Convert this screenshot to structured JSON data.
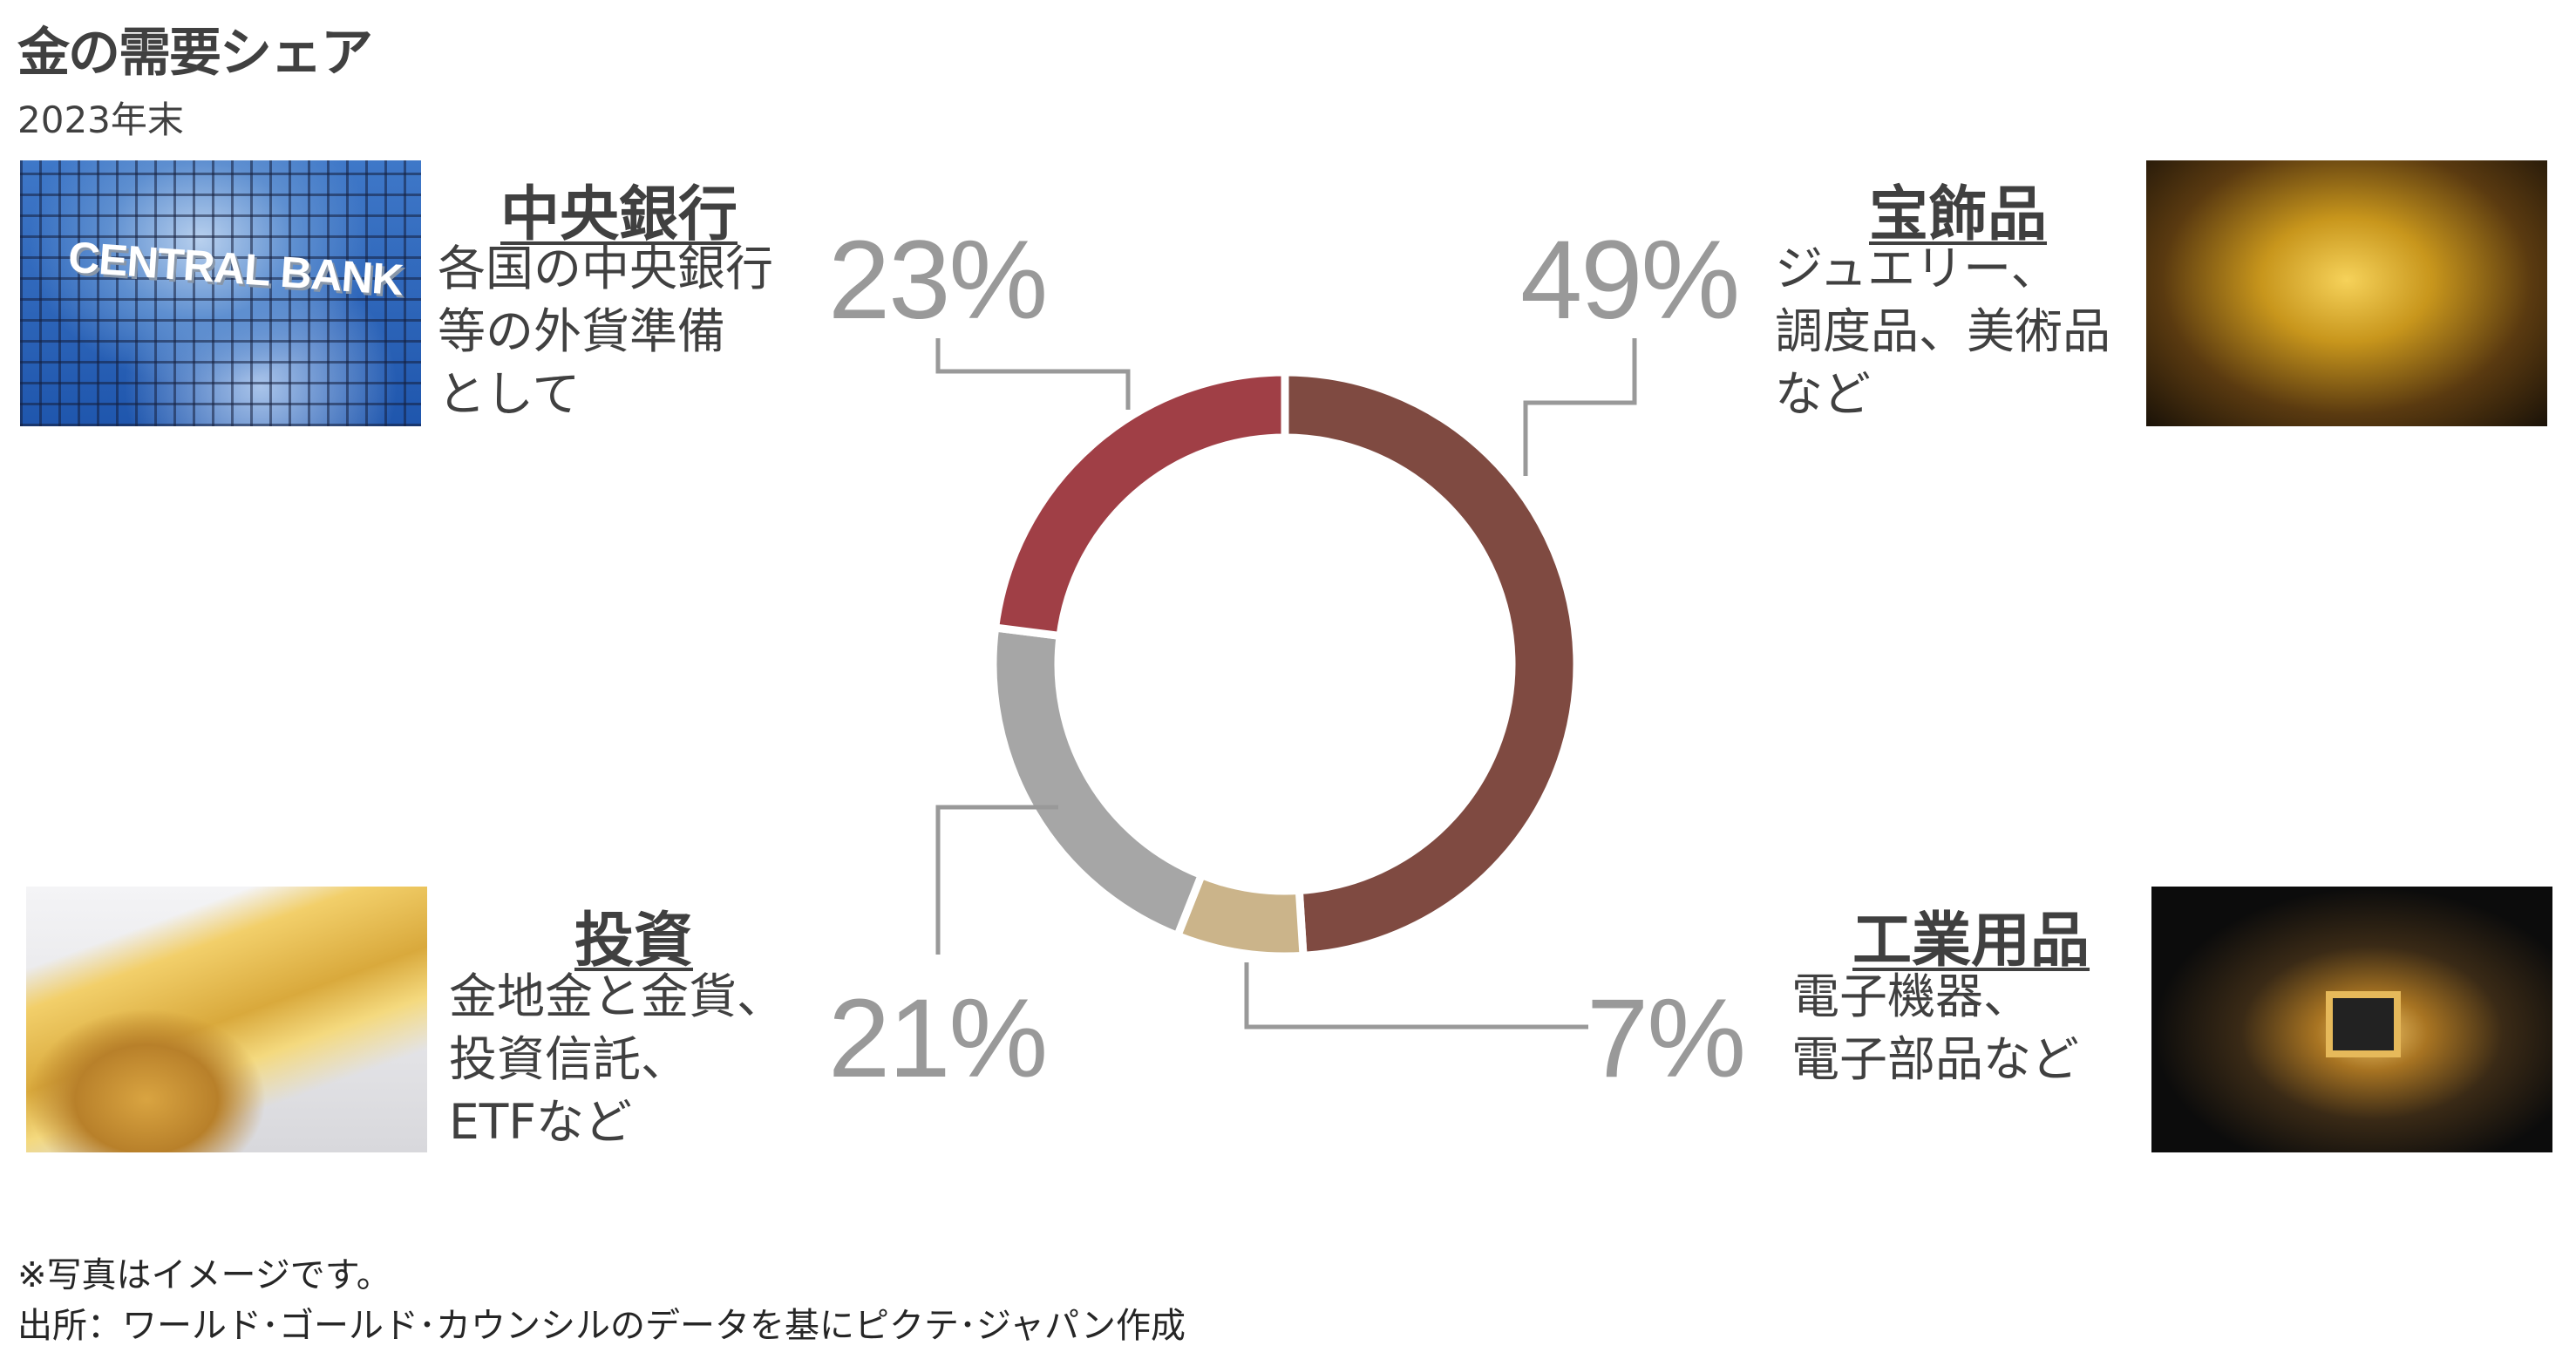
{
  "title": "金の需要シェア",
  "subtitle": "2023年末",
  "chart_data": {
    "type": "pie",
    "style": "donut",
    "start": "top-clockwise",
    "categories": [
      "宝飾品",
      "工業用品",
      "投資",
      "中央銀行"
    ],
    "values": [
      49,
      7,
      21,
      23
    ],
    "labels": [
      "49%",
      "7%",
      "21%",
      "23%"
    ],
    "colors": [
      "#7f4a41",
      "#cbb48a",
      "#a6a6a6",
      "#a03f46"
    ]
  },
  "segments": {
    "central_bank": {
      "title": "中央銀行",
      "lines": [
        "各国の中央銀行",
        "等の外貨準備",
        "として"
      ],
      "pct": "23%",
      "photo_text": "CENTRAL BANK"
    },
    "jewelry": {
      "title": "宝飾品",
      "lines": [
        "ジュエリー、",
        "調度品、美術品",
        "など"
      ],
      "pct": "49%"
    },
    "investment": {
      "title": "投資",
      "lines": [
        "金地金と金貨、",
        "投資信託、",
        "ETFなど"
      ],
      "pct": "21%"
    },
    "industrial": {
      "title": "工業用品",
      "lines": [
        "電子機器、",
        "電子部品など"
      ],
      "pct": "7%"
    }
  },
  "footnotes": [
    "※写真はイメージです。",
    "出所：ワールド･ゴールド･カウンシルのデータを基にピクテ･ジャパン作成"
  ],
  "leader_color": "#999999"
}
